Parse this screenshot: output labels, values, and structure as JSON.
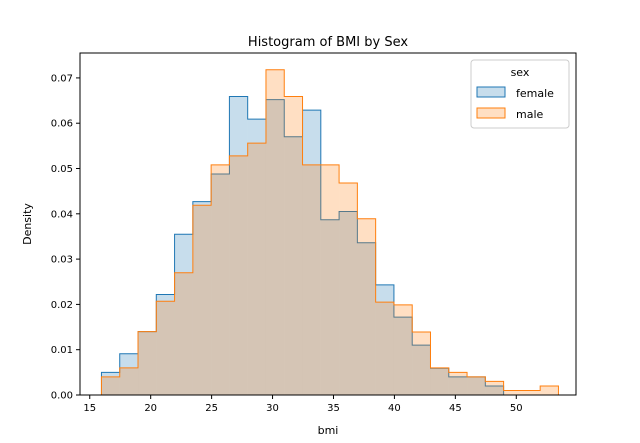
{
  "chart_data": {
    "type": "histogram",
    "title": "Histogram of BMI by Sex",
    "xlabel": "bmi",
    "ylabel": "Density",
    "xlim": [
      14.2,
      54.9
    ],
    "ylim": [
      0,
      0.0755
    ],
    "xticks": [
      15,
      20,
      25,
      30,
      35,
      40,
      45,
      50
    ],
    "yticks": [
      0.0,
      0.01,
      0.02,
      0.03,
      0.04,
      0.05,
      0.06,
      0.07
    ],
    "ytick_labels": [
      "0.00",
      "0.01",
      "0.02",
      "0.03",
      "0.04",
      "0.05",
      "0.06",
      "0.07"
    ],
    "bin_start": 15.96,
    "bin_width": 1.5,
    "grid": false,
    "legend": {
      "title": "sex",
      "placement": "top-right"
    },
    "series": [
      {
        "name": "female",
        "color": "#1f77b4",
        "values": [
          0.005,
          0.0091,
          0.014,
          0.0222,
          0.0355,
          0.0427,
          0.0488,
          0.0659,
          0.0609,
          0.0652,
          0.057,
          0.0629,
          0.0387,
          0.0405,
          0.0336,
          0.0243,
          0.0172,
          0.011,
          0.0059,
          0.004,
          0.004,
          0.002,
          0.0,
          0.0,
          0.0
        ]
      },
      {
        "name": "male",
        "color": "#ff7f0e",
        "values": [
          0.004,
          0.006,
          0.014,
          0.0207,
          0.027,
          0.0419,
          0.0508,
          0.0528,
          0.0556,
          0.0718,
          0.0659,
          0.0508,
          0.0508,
          0.0468,
          0.0389,
          0.0205,
          0.0199,
          0.0139,
          0.006,
          0.005,
          0.004,
          0.003,
          0.001,
          0.001,
          0.002
        ]
      }
    ]
  }
}
